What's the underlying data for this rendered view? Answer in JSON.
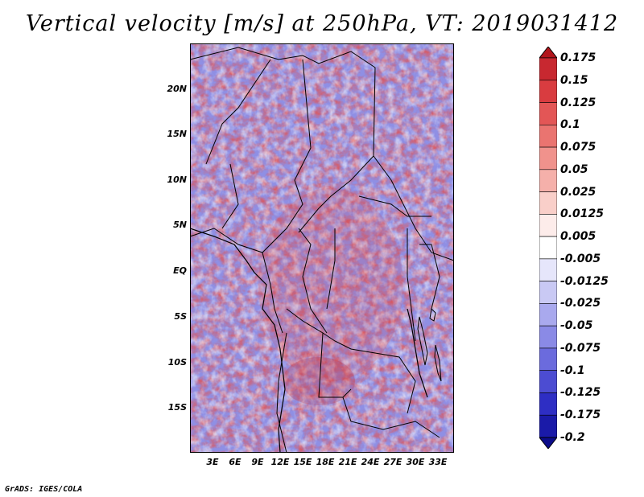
{
  "title": "Vertical velocity [m/s] at 250hPa, VT: 2019031412",
  "credit": "GrADS: IGES/COLA",
  "map": {
    "lat_labels": [
      "20N",
      "15N",
      "10N",
      "5N",
      "EQ",
      "5S",
      "10S",
      "15S"
    ],
    "lat_values": [
      20,
      15,
      10,
      5,
      0,
      -5,
      -10,
      -15
    ],
    "lon_labels": [
      "3E",
      "6E",
      "9E",
      "12E",
      "15E",
      "18E",
      "21E",
      "24E",
      "27E",
      "30E",
      "33E"
    ],
    "lon_values": [
      3,
      6,
      9,
      12,
      15,
      18,
      21,
      24,
      27,
      30,
      33
    ],
    "lon_range": [
      0,
      35
    ],
    "lat_range": [
      -20,
      24.7
    ]
  },
  "colorbar": {
    "labels": [
      "0.175",
      "0.15",
      "0.125",
      "0.1",
      "0.075",
      "0.05",
      "0.025",
      "0.0125",
      "0.005",
      "-0.005",
      "-0.0125",
      "-0.025",
      "-0.05",
      "-0.075",
      "-0.1",
      "-0.125",
      "-0.175",
      "-0.2"
    ],
    "colors": [
      "#b2151c",
      "#c82830",
      "#d93c40",
      "#e35656",
      "#ea7470",
      "#f0928c",
      "#f5b0aa",
      "#f9cfc9",
      "#fdecea",
      "#ffffff",
      "#e6e6fb",
      "#c9c9f4",
      "#a9a9ee",
      "#8a8ae6",
      "#6b6bdd",
      "#4c4cd2",
      "#2e2ec4",
      "#1a1aa8",
      "#0c0c8a"
    ]
  }
}
